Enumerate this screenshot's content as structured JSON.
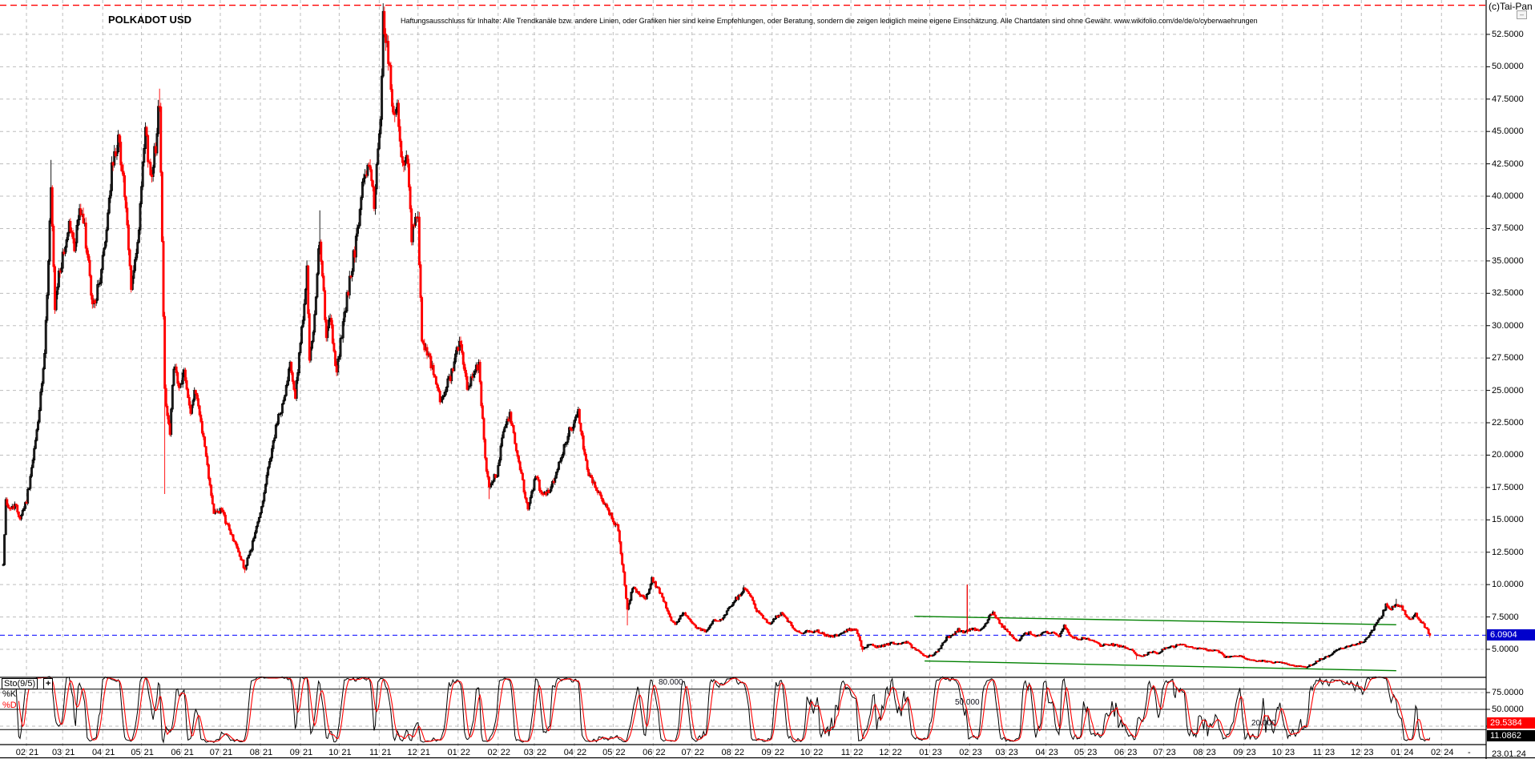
{
  "window": {
    "copyright": "(c)Tai-Pan",
    "collapse_glyph": "–"
  },
  "header": {
    "title": "POLKADOT USD",
    "disclaimer": "Haftungsausschluss für Inhalte: Alle Trendkanäle bzw. andere Linien, oder Grafiken hier sind keine Empfehlungen, oder Beratung, sondern die zeigen lediglich meine eigene Einschätzung. Alle Chartdaten sind ohne Gewähr.  www.wikifolio.com/de/de/o/cyberwaehrungen"
  },
  "price_axis": {
    "labels": [
      {
        "text": "52.5000",
        "value": 52.5
      },
      {
        "text": "50.0000",
        "value": 50
      },
      {
        "text": "47.5000",
        "value": 47.5
      },
      {
        "text": "45.0000",
        "value": 45
      },
      {
        "text": "42.5000",
        "value": 42.5
      },
      {
        "text": "40.0000",
        "value": 40
      },
      {
        "text": "37.5000",
        "value": 37.5
      },
      {
        "text": "35.0000",
        "value": 35
      },
      {
        "text": "32.5000",
        "value": 32.5
      },
      {
        "text": "30.0000",
        "value": 30
      },
      {
        "text": "27.5000",
        "value": 27.5
      },
      {
        "text": "25.0000",
        "value": 25
      },
      {
        "text": "22.5000",
        "value": 22.5
      },
      {
        "text": "20.0000",
        "value": 20
      },
      {
        "text": "17.5000",
        "value": 17.5
      },
      {
        "text": "15.0000",
        "value": 15
      },
      {
        "text": "12.5000",
        "value": 12.5
      },
      {
        "text": "10.0000",
        "value": 10
      },
      {
        "text": "7.5000",
        "value": 7.5
      },
      {
        "text": "5.0000",
        "value": 5
      }
    ],
    "current_text": "6.0904",
    "current_value": 6.0904
  },
  "sto_axis": {
    "labels": [
      {
        "text": "75.0000",
        "value": 75
      },
      {
        "text": "50.0000",
        "value": 50
      },
      {
        "text": "25.0000",
        "value": 25
      }
    ],
    "d_text": "29.5384",
    "d_value": 29.5384,
    "k_text": "11.0862",
    "k_value": 11.0862
  },
  "x_axis": {
    "months": [
      {
        "m": "02",
        "y": "21"
      },
      {
        "m": "03",
        "y": "21"
      },
      {
        "m": "04",
        "y": "21"
      },
      {
        "m": "05",
        "y": "21"
      },
      {
        "m": "06",
        "y": "21"
      },
      {
        "m": "07",
        "y": "21"
      },
      {
        "m": "08",
        "y": "21"
      },
      {
        "m": "09",
        "y": "21"
      },
      {
        "m": "10",
        "y": "21"
      },
      {
        "m": "11",
        "y": "21"
      },
      {
        "m": "12",
        "y": "21"
      },
      {
        "m": "01",
        "y": "22"
      },
      {
        "m": "02",
        "y": "22"
      },
      {
        "m": "03",
        "y": "22"
      },
      {
        "m": "04",
        "y": "22"
      },
      {
        "m": "05",
        "y": "22"
      },
      {
        "m": "06",
        "y": "22"
      },
      {
        "m": "07",
        "y": "22"
      },
      {
        "m": "08",
        "y": "22"
      },
      {
        "m": "09",
        "y": "22"
      },
      {
        "m": "10",
        "y": "22"
      },
      {
        "m": "11",
        "y": "22"
      },
      {
        "m": "12",
        "y": "22"
      },
      {
        "m": "01",
        "y": "23"
      },
      {
        "m": "02",
        "y": "23"
      },
      {
        "m": "03",
        "y": "23"
      },
      {
        "m": "04",
        "y": "23"
      },
      {
        "m": "05",
        "y": "23"
      },
      {
        "m": "06",
        "y": "23"
      },
      {
        "m": "07",
        "y": "23"
      },
      {
        "m": "08",
        "y": "23"
      },
      {
        "m": "09",
        "y": "23"
      },
      {
        "m": "10",
        "y": "23"
      },
      {
        "m": "11",
        "y": "23"
      },
      {
        "m": "12",
        "y": "23"
      },
      {
        "m": "01",
        "y": "24"
      },
      {
        "m": "02",
        "y": "24"
      }
    ],
    "separator": "-",
    "current_date": "23.01.24"
  },
  "indicator": {
    "name": "Sto(9/5)",
    "add_button": "+",
    "k_label": "%K",
    "d_label": "%D",
    "levels": [
      {
        "text": "80.000",
        "value": 80
      },
      {
        "text": "50.000",
        "value": 50
      },
      {
        "text": "20.000",
        "value": 20
      }
    ]
  },
  "colors": {
    "up": "#000000",
    "up_fill": "#ffffff",
    "down": "#ff0000",
    "grid": "#bdbdbd",
    "current_line": "#0000ff",
    "badge_blue": "#0000cc",
    "badge_red": "#ff0000",
    "badge_black": "#000000",
    "channel": "#008000",
    "alarm": "#ff0000",
    "k_line": "#000000",
    "d_line": "#ff0000"
  },
  "chart_data": {
    "type": "candlestick",
    "symbol": "POLKADOT USD",
    "date_range": [
      "2021-01-14",
      "2024-01-23"
    ],
    "y_axis_range": [
      5,
      52.5
    ],
    "grid": true,
    "last_close": 6.0904,
    "alarm_line_price": 54.75,
    "current_price_line": 6.0904,
    "trend_channel": {
      "upper": {
        "from": [
          "2022-12-20",
          7.55
        ],
        "to": [
          "2023-12-28",
          6.9
        ]
      },
      "lower": {
        "from": [
          "2022-12-28",
          4.1
        ],
        "to": [
          "2023-12-28",
          3.35
        ]
      }
    },
    "anomaly_spike": {
      "date": "2023-01-30",
      "high": 10.0,
      "low": 6.2
    },
    "keyframes": [
      [
        "2021-01-14",
        11.5
      ],
      [
        "2021-01-16",
        16.5
      ],
      [
        "2021-01-19",
        15.8
      ],
      [
        "2021-01-23",
        16.2
      ],
      [
        "2021-01-27",
        15.2
      ],
      [
        "2021-02-01",
        16.5
      ],
      [
        "2021-02-06",
        19.5
      ],
      [
        "2021-02-11",
        23.5
      ],
      [
        "2021-02-15",
        27.5
      ],
      [
        "2021-02-20",
        40.5
      ],
      [
        "2021-02-23",
        31.0
      ],
      [
        "2021-02-26",
        34.0
      ],
      [
        "2021-03-02",
        35.5
      ],
      [
        "2021-03-06",
        38.0
      ],
      [
        "2021-03-10",
        36.0
      ],
      [
        "2021-03-14",
        39.0
      ],
      [
        "2021-03-18",
        37.5
      ],
      [
        "2021-03-24",
        31.5
      ],
      [
        "2021-03-29",
        33.0
      ],
      [
        "2021-04-03",
        36.5
      ],
      [
        "2021-04-08",
        42.0
      ],
      [
        "2021-04-13",
        44.5
      ],
      [
        "2021-04-17",
        41.5
      ],
      [
        "2021-04-23",
        33.0
      ],
      [
        "2021-04-28",
        36.0
      ],
      [
        "2021-05-04",
        45.0
      ],
      [
        "2021-05-08",
        41.5
      ],
      [
        "2021-05-12",
        44.0
      ],
      [
        "2021-05-15",
        47.5
      ],
      [
        "2021-05-19",
        25.0
      ],
      [
        "2021-05-23",
        21.5
      ],
      [
        "2021-05-26",
        27.0
      ],
      [
        "2021-05-30",
        25.0
      ],
      [
        "2021-06-03",
        26.5
      ],
      [
        "2021-06-08",
        23.5
      ],
      [
        "2021-06-12",
        25.0
      ],
      [
        "2021-06-17",
        22.0
      ],
      [
        "2021-06-22",
        18.5
      ],
      [
        "2021-06-26",
        15.5
      ],
      [
        "2021-07-01",
        15.8
      ],
      [
        "2021-07-07",
        14.5
      ],
      [
        "2021-07-13",
        13.0
      ],
      [
        "2021-07-20",
        11.2
      ],
      [
        "2021-07-26",
        13.2
      ],
      [
        "2021-08-01",
        15.5
      ],
      [
        "2021-08-08",
        19.5
      ],
      [
        "2021-08-14",
        22.5
      ],
      [
        "2021-08-20",
        24.5
      ],
      [
        "2021-08-24",
        27.5
      ],
      [
        "2021-08-28",
        24.5
      ],
      [
        "2021-09-02",
        29.5
      ],
      [
        "2021-09-06",
        34.5
      ],
      [
        "2021-09-08",
        27.0
      ],
      [
        "2021-09-12",
        30.5
      ],
      [
        "2021-09-16",
        37.0
      ],
      [
        "2021-09-21",
        29.0
      ],
      [
        "2021-09-24",
        30.5
      ],
      [
        "2021-09-29",
        26.5
      ],
      [
        "2021-10-04",
        30.0
      ],
      [
        "2021-10-09",
        33.5
      ],
      [
        "2021-10-15",
        37.0
      ],
      [
        "2021-10-20",
        41.5
      ],
      [
        "2021-10-24",
        42.5
      ],
      [
        "2021-10-28",
        39.5
      ],
      [
        "2021-11-02",
        45.5
      ],
      [
        "2021-11-04",
        53.5
      ],
      [
        "2021-11-08",
        51.0
      ],
      [
        "2021-11-12",
        46.0
      ],
      [
        "2021-11-15",
        47.5
      ],
      [
        "2021-11-18",
        42.5
      ],
      [
        "2021-11-22",
        43.5
      ],
      [
        "2021-11-26",
        37.0
      ],
      [
        "2021-12-01",
        38.5
      ],
      [
        "2021-12-04",
        28.5
      ],
      [
        "2021-12-09",
        27.5
      ],
      [
        "2021-12-14",
        26.0
      ],
      [
        "2021-12-19",
        24.0
      ],
      [
        "2021-12-24",
        25.5
      ],
      [
        "2021-12-29",
        27.0
      ],
      [
        "2022-01-02",
        29.0
      ],
      [
        "2022-01-08",
        25.0
      ],
      [
        "2022-01-13",
        26.5
      ],
      [
        "2022-01-17",
        27.0
      ],
      [
        "2022-01-22",
        19.5
      ],
      [
        "2022-01-25",
        17.8
      ],
      [
        "2022-01-31",
        18.5
      ],
      [
        "2022-02-05",
        22.0
      ],
      [
        "2022-02-10",
        23.0
      ],
      [
        "2022-02-16",
        20.0
      ],
      [
        "2022-02-24",
        15.8
      ],
      [
        "2022-03-02",
        18.3
      ],
      [
        "2022-03-08",
        16.8
      ],
      [
        "2022-03-14",
        17.5
      ],
      [
        "2022-03-21",
        19.8
      ],
      [
        "2022-03-28",
        21.8
      ],
      [
        "2022-04-04",
        23.2
      ],
      [
        "2022-04-11",
        18.8
      ],
      [
        "2022-04-18",
        17.5
      ],
      [
        "2022-04-25",
        16.2
      ],
      [
        "2022-05-01",
        15.0
      ],
      [
        "2022-05-05",
        14.3
      ],
      [
        "2022-05-09",
        10.8
      ],
      [
        "2022-05-12",
        8.0
      ],
      [
        "2022-05-16",
        9.8
      ],
      [
        "2022-05-20",
        9.4
      ],
      [
        "2022-05-26",
        8.8
      ],
      [
        "2022-05-31",
        10.4
      ],
      [
        "2022-06-05",
        9.6
      ],
      [
        "2022-06-10",
        8.6
      ],
      [
        "2022-06-14",
        7.4
      ],
      [
        "2022-06-18",
        6.9
      ],
      [
        "2022-06-24",
        7.9
      ],
      [
        "2022-06-30",
        7.1
      ],
      [
        "2022-07-06",
        6.6
      ],
      [
        "2022-07-12",
        6.4
      ],
      [
        "2022-07-18",
        7.2
      ],
      [
        "2022-07-24",
        7.3
      ],
      [
        "2022-07-30",
        8.3
      ],
      [
        "2022-08-05",
        9.0
      ],
      [
        "2022-08-10",
        9.6
      ],
      [
        "2022-08-15",
        9.2
      ],
      [
        "2022-08-20",
        8.0
      ],
      [
        "2022-08-25",
        7.4
      ],
      [
        "2022-08-30",
        7.0
      ],
      [
        "2022-09-04",
        7.5
      ],
      [
        "2022-09-09",
        7.8
      ],
      [
        "2022-09-14",
        7.1
      ],
      [
        "2022-09-19",
        6.5
      ],
      [
        "2022-09-24",
        6.3
      ],
      [
        "2022-09-30",
        6.4
      ],
      [
        "2022-10-06",
        6.4
      ],
      [
        "2022-10-12",
        6.1
      ],
      [
        "2022-10-18",
        6.0
      ],
      [
        "2022-10-24",
        6.2
      ],
      [
        "2022-10-30",
        6.5
      ],
      [
        "2022-11-05",
        6.5
      ],
      [
        "2022-11-08",
        5.6
      ],
      [
        "2022-11-10",
        5.0
      ],
      [
        "2022-11-15",
        5.4
      ],
      [
        "2022-11-21",
        5.2
      ],
      [
        "2022-11-27",
        5.3
      ],
      [
        "2022-12-03",
        5.5
      ],
      [
        "2022-12-09",
        5.4
      ],
      [
        "2022-12-14",
        5.6
      ],
      [
        "2022-12-19",
        5.1
      ],
      [
        "2022-12-24",
        4.8
      ],
      [
        "2022-12-30",
        4.4
      ],
      [
        "2023-01-04",
        4.6
      ],
      [
        "2023-01-09",
        5.1
      ],
      [
        "2023-01-14",
        5.9
      ],
      [
        "2023-01-19",
        6.1
      ],
      [
        "2023-01-23",
        6.5
      ],
      [
        "2023-01-28",
        6.3
      ],
      [
        "2023-02-02",
        6.6
      ],
      [
        "2023-02-08",
        6.5
      ],
      [
        "2023-02-13",
        6.9
      ],
      [
        "2023-02-16",
        7.5
      ],
      [
        "2023-02-19",
        7.9
      ],
      [
        "2023-02-24",
        7.0
      ],
      [
        "2023-03-03",
        6.3
      ],
      [
        "2023-03-10",
        5.6
      ],
      [
        "2023-03-14",
        6.1
      ],
      [
        "2023-03-19",
        6.3
      ],
      [
        "2023-03-25",
        6.0
      ],
      [
        "2023-03-31",
        6.3
      ],
      [
        "2023-04-06",
        6.3
      ],
      [
        "2023-04-11",
        6.0
      ],
      [
        "2023-04-15",
        6.8
      ],
      [
        "2023-04-20",
        6.0
      ],
      [
        "2023-04-26",
        5.8
      ],
      [
        "2023-05-02",
        5.9
      ],
      [
        "2023-05-08",
        5.6
      ],
      [
        "2023-05-13",
        5.3
      ],
      [
        "2023-05-19",
        5.4
      ],
      [
        "2023-05-25",
        5.3
      ],
      [
        "2023-05-31",
        5.2
      ],
      [
        "2023-06-06",
        5.0
      ],
      [
        "2023-06-10",
        4.5
      ],
      [
        "2023-06-15",
        4.5
      ],
      [
        "2023-06-21",
        4.8
      ],
      [
        "2023-06-27",
        4.7
      ],
      [
        "2023-07-03",
        5.2
      ],
      [
        "2023-07-09",
        5.2
      ],
      [
        "2023-07-14",
        5.4
      ],
      [
        "2023-07-20",
        5.2
      ],
      [
        "2023-07-26",
        5.1
      ],
      [
        "2023-08-01",
        5.0
      ],
      [
        "2023-08-07",
        4.9
      ],
      [
        "2023-08-12",
        4.9
      ],
      [
        "2023-08-17",
        4.4
      ],
      [
        "2023-08-23",
        4.4
      ],
      [
        "2023-08-29",
        4.5
      ],
      [
        "2023-09-04",
        4.2
      ],
      [
        "2023-09-10",
        4.1
      ],
      [
        "2023-09-16",
        4.1
      ],
      [
        "2023-09-22",
        4.0
      ],
      [
        "2023-09-28",
        4.0
      ],
      [
        "2023-10-04",
        3.9
      ],
      [
        "2023-10-10",
        3.7
      ],
      [
        "2023-10-15",
        3.7
      ],
      [
        "2023-10-19",
        3.6
      ],
      [
        "2023-10-25",
        3.9
      ],
      [
        "2023-10-31",
        4.3
      ],
      [
        "2023-11-06",
        4.5
      ],
      [
        "2023-11-11",
        4.9
      ],
      [
        "2023-11-16",
        5.1
      ],
      [
        "2023-11-21",
        5.2
      ],
      [
        "2023-11-27",
        5.4
      ],
      [
        "2023-12-03",
        5.6
      ],
      [
        "2023-12-08",
        6.3
      ],
      [
        "2023-12-13",
        7.0
      ],
      [
        "2023-12-17",
        7.7
      ],
      [
        "2023-12-20",
        8.4
      ],
      [
        "2023-12-24",
        8.1
      ],
      [
        "2023-12-28",
        8.5
      ],
      [
        "2024-01-01",
        8.3
      ],
      [
        "2024-01-05",
        7.5
      ],
      [
        "2024-01-09",
        7.3
      ],
      [
        "2024-01-12",
        7.7
      ],
      [
        "2024-01-15",
        7.3
      ],
      [
        "2024-01-18",
        6.9
      ],
      [
        "2024-01-21",
        6.5
      ],
      [
        "2024-01-23",
        6.09
      ]
    ],
    "extremes": [
      [
        "2021-02-20",
        "high",
        42.8
      ],
      [
        "2021-05-15",
        "high",
        48.3
      ],
      [
        "2021-05-19",
        "low",
        17.0
      ],
      [
        "2021-07-20",
        "low",
        10.9
      ],
      [
        "2021-09-16",
        "high",
        38.9
      ],
      [
        "2021-11-04",
        "high",
        54.9
      ],
      [
        "2021-11-05",
        "high",
        53.5
      ],
      [
        "2022-01-25",
        "low",
        16.6
      ],
      [
        "2022-05-12",
        "low",
        6.85
      ],
      [
        "2022-08-10",
        "high",
        9.95
      ],
      [
        "2022-11-10",
        "low",
        4.8
      ],
      [
        "2023-01-30",
        "high",
        10.0
      ],
      [
        "2023-02-19",
        "high",
        8.0
      ],
      [
        "2023-06-10",
        "low",
        4.2
      ],
      [
        "2023-10-19",
        "low",
        3.55
      ],
      [
        "2023-12-28",
        "high",
        8.9
      ],
      [
        "2024-01-23",
        "low",
        5.9
      ]
    ],
    "stochastic": {
      "indicator": "Sto(9/5)",
      "k_period": 9,
      "d_period": 5,
      "levels": [
        80,
        50,
        20
      ],
      "range": [
        0,
        100
      ],
      "final_k": 11.0862,
      "final_d": 29.5384
    }
  }
}
